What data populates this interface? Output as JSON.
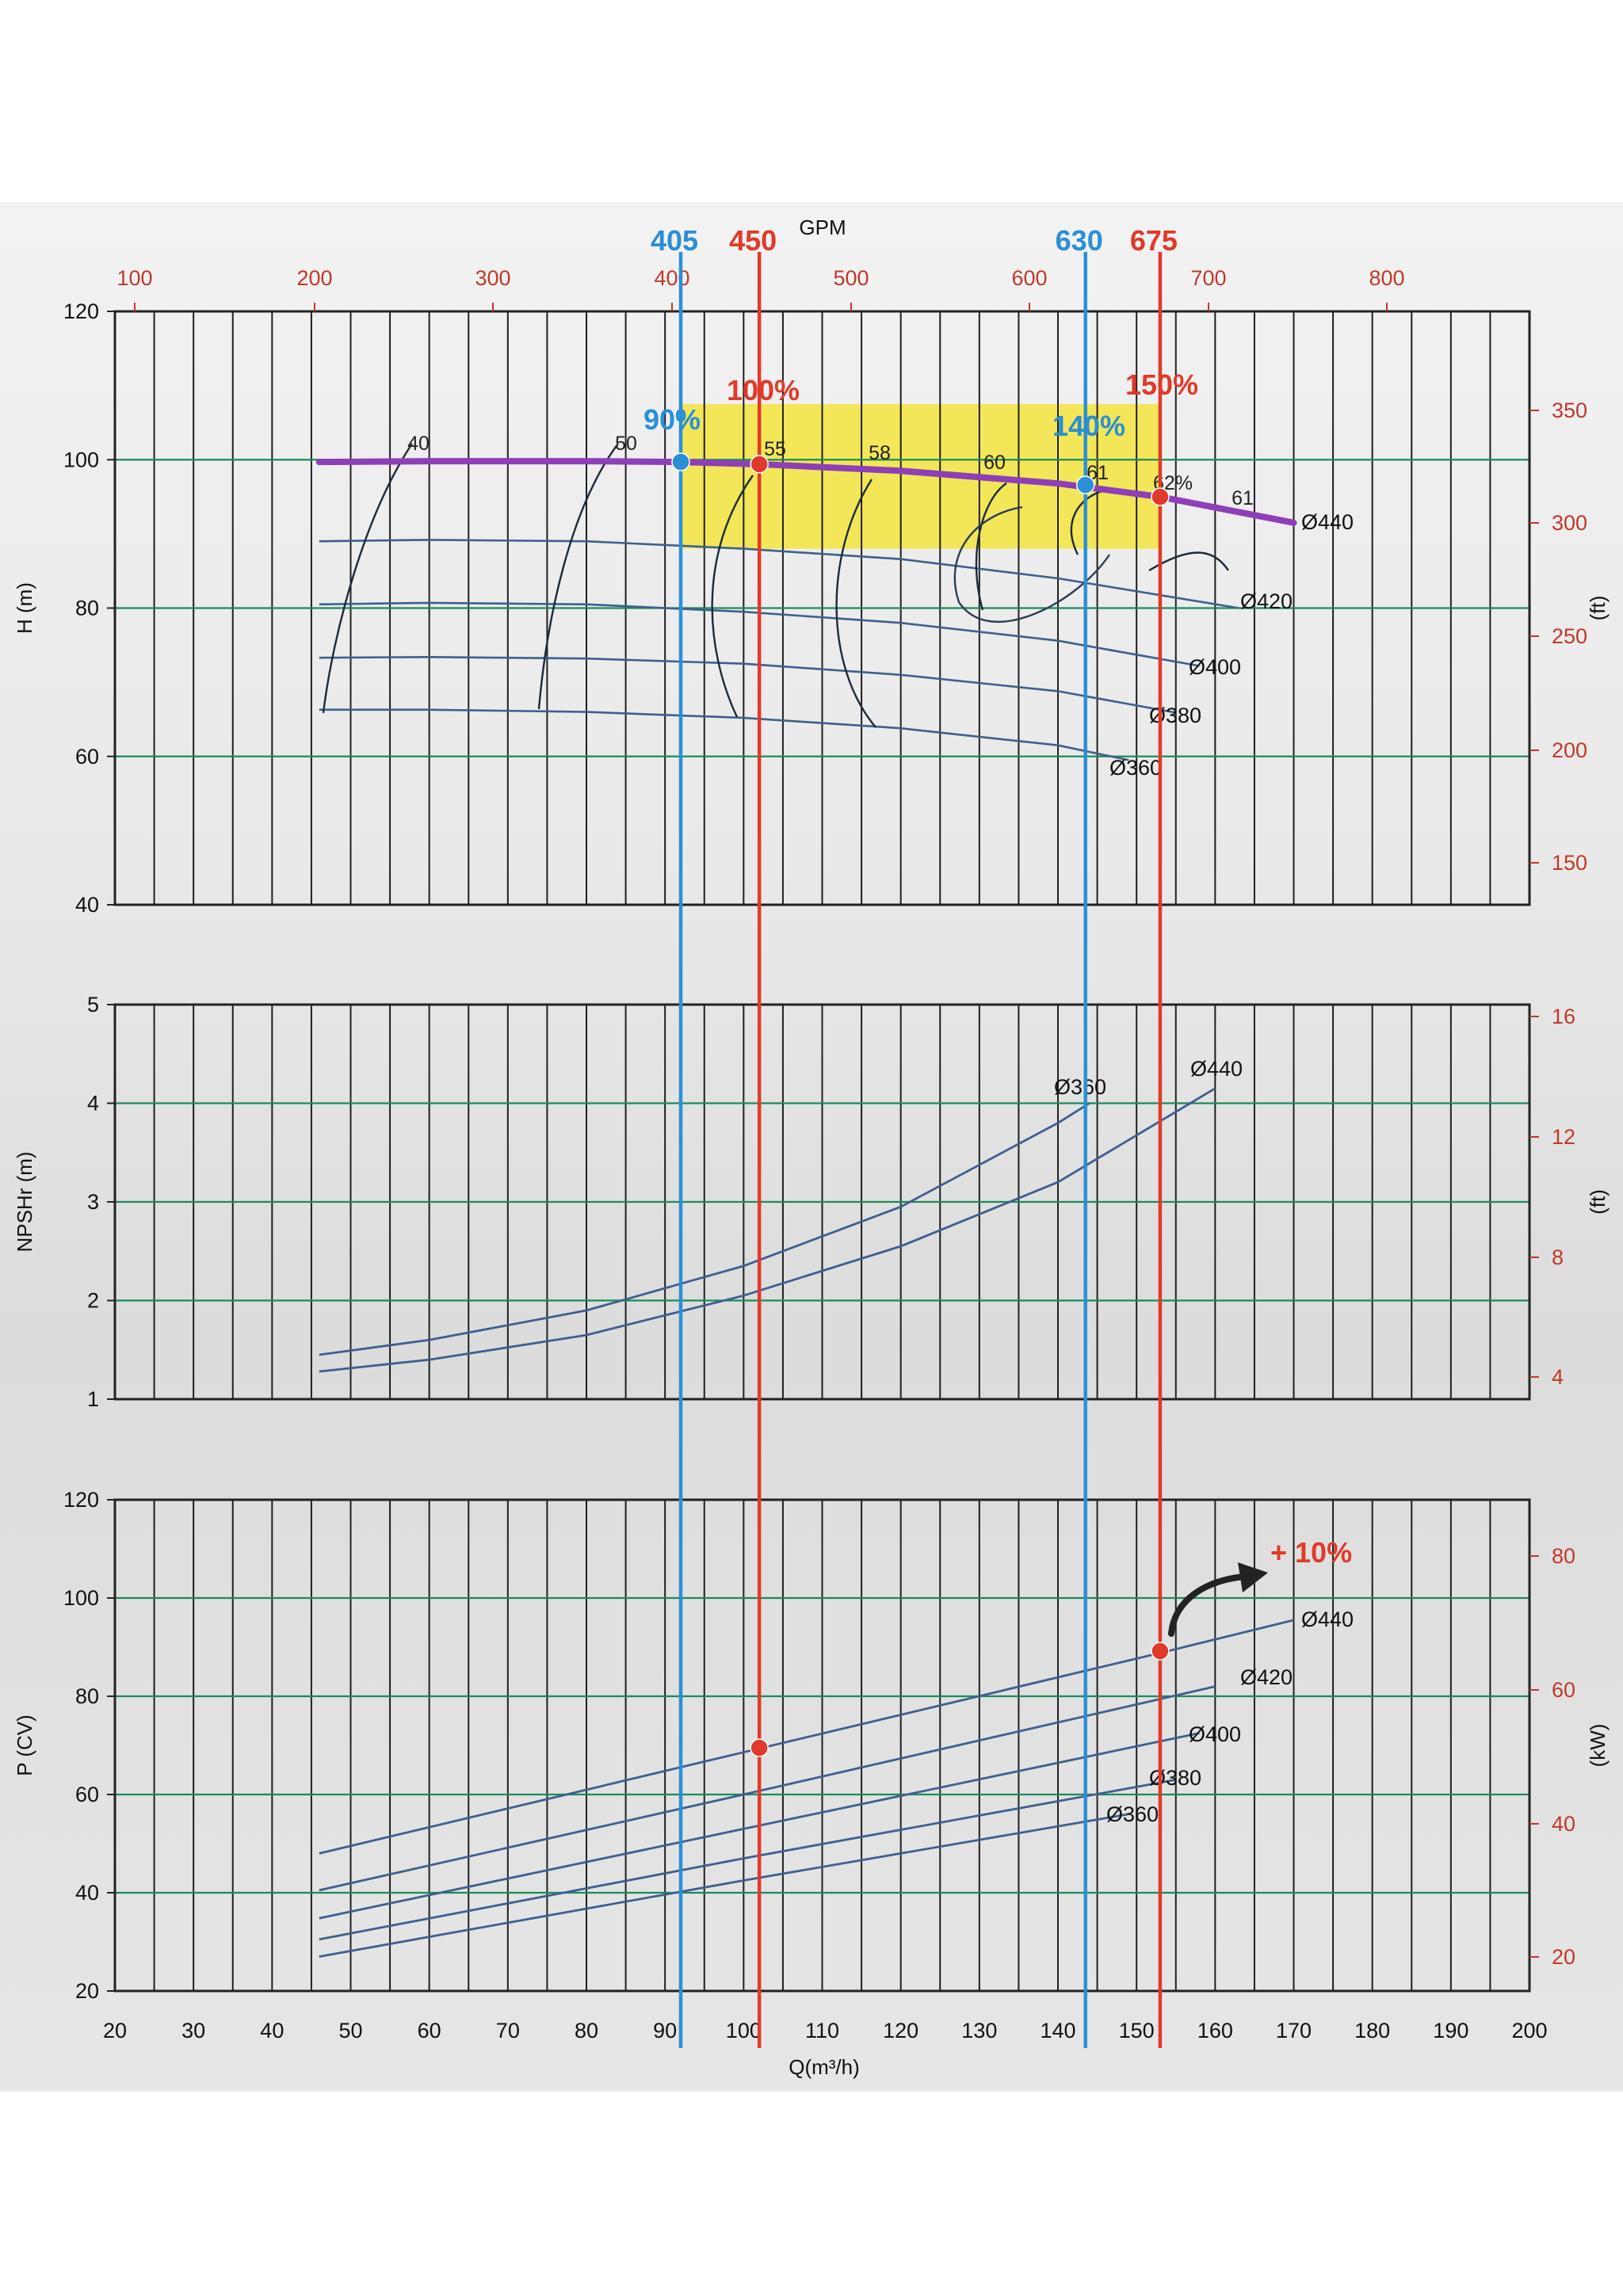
{
  "chart_data": {
    "type": "line",
    "x_axis": {
      "label": "Q(m³/h)",
      "min": 20,
      "max": 200,
      "ticks": [
        20,
        30,
        40,
        50,
        60,
        70,
        80,
        90,
        100,
        110,
        120,
        130,
        140,
        150,
        160,
        170,
        180,
        190,
        200
      ]
    },
    "gpm_axis": {
      "label": "GPM",
      "ticks": [
        100,
        200,
        300,
        400,
        500,
        600,
        700,
        800
      ]
    },
    "panels": {
      "head": {
        "ylabel": "H (m)",
        "ylim": [
          40,
          120
        ],
        "yticks": [
          40,
          60,
          80,
          100,
          120
        ],
        "right_label": "(ft)",
        "right_ticks": [
          150,
          200,
          250,
          300,
          350
        ],
        "operating_curve": {
          "name": "Ø440",
          "x": [
            46,
            60,
            80,
            92,
            102,
            120,
            140,
            153,
            170
          ],
          "y": [
            99.7,
            99.8,
            99.8,
            99.7,
            99.4,
            98.5,
            96.8,
            95.0,
            91.5
          ]
        },
        "impeller_curves": [
          {
            "name": "Ø420",
            "x": [
              46,
              60,
              80,
              100,
              120,
              140,
              163
            ],
            "y": [
              89,
              89.2,
              89,
              88,
              86.6,
              84,
              80
            ]
          },
          {
            "name": "Ø400",
            "x": [
              46,
              60,
              80,
              100,
              120,
              140,
              158
            ],
            "y": [
              80.5,
              80.7,
              80.5,
              79.5,
              78,
              75.6,
              72.2
            ]
          },
          {
            "name": "Ø380",
            "x": [
              46,
              60,
              80,
              100,
              120,
              140,
              155
            ],
            "y": [
              73.3,
              73.4,
              73.2,
              72.5,
              71,
              68.8,
              65.9
            ]
          },
          {
            "name": "Ø360",
            "x": [
              46,
              60,
              80,
              100,
              120,
              140,
              149
            ],
            "y": [
              66.3,
              66.3,
              66,
              65.2,
              63.8,
              61.5,
              59.5
            ]
          }
        ],
        "efficiency_labels": [
          "40",
          "50",
          "55",
          "58",
          "60",
          "61",
          "62%",
          "61"
        ],
        "highlight_zone": {
          "x": [
            92,
            153
          ],
          "y": [
            88,
            107.5
          ]
        },
        "points": [
          {
            "label": "90%",
            "x": 92,
            "y": 99.7,
            "color": "#2a8fd6"
          },
          {
            "label": "100%",
            "x": 102,
            "y": 99.4,
            "color": "#e03a2a"
          },
          {
            "label": "140%",
            "x": 143.5,
            "y": 96.6,
            "color": "#2a8fd6"
          },
          {
            "label": "150%",
            "x": 153,
            "y": 95.0,
            "color": "#e03a2a"
          }
        ]
      },
      "npsh": {
        "ylabel": "NPSHr (m)",
        "ylim": [
          1,
          5
        ],
        "yticks": [
          1,
          2,
          3,
          4,
          5
        ],
        "right_label": "(ft)",
        "right_ticks": [
          4,
          8,
          12,
          16
        ],
        "series": [
          {
            "name": "Ø360",
            "x": [
              46,
              60,
              80,
              100,
              120,
              140,
              144
            ],
            "y": [
              1.45,
              1.6,
              1.9,
              2.35,
              2.95,
              3.8,
              4.0
            ]
          },
          {
            "name": "Ø440",
            "x": [
              46,
              60,
              80,
              100,
              120,
              140,
              160
            ],
            "y": [
              1.28,
              1.4,
              1.65,
              2.05,
              2.55,
              3.2,
              4.15
            ]
          }
        ]
      },
      "power": {
        "ylabel": "P (CV)",
        "ylim": [
          20,
          120
        ],
        "yticks": [
          20,
          40,
          60,
          80,
          100,
          120
        ],
        "right_label": "(kW)",
        "right_ticks": [
          20,
          40,
          60,
          80
        ],
        "series": [
          {
            "name": "Ø440",
            "x": [
              46,
              100,
              153,
              170
            ],
            "y": [
              48,
              68.6,
              88.8,
              95.5
            ]
          },
          {
            "name": "Ø420",
            "x": [
              46,
              100,
              160
            ],
            "y": [
              40.5,
              60,
              82
            ]
          },
          {
            "name": "Ø400",
            "x": [
              46,
              100,
              158
            ],
            "y": [
              34.8,
              53,
              72.5
            ]
          },
          {
            "name": "Ø380",
            "x": [
              46,
              100,
              155
            ],
            "y": [
              30.5,
              47,
              63
            ]
          },
          {
            "name": "Ø360",
            "x": [
              46,
              100,
              149
            ],
            "y": [
              27,
              42.5,
              56
            ]
          }
        ],
        "points": [
          {
            "x": 102,
            "y": 69.5,
            "color": "#e03a2a"
          },
          {
            "x": 153,
            "y": 89.2,
            "color": "#e03a2a"
          }
        ],
        "annotation": "+ 10%"
      }
    },
    "markers": [
      {
        "label": "405",
        "x": 92,
        "color": "#2a8fd6"
      },
      {
        "label": "450",
        "x": 102,
        "color": "#e03a2a"
      },
      {
        "label": "630",
        "x": 143.5,
        "color": "#2a8fd6"
      },
      {
        "label": "675",
        "x": 153,
        "color": "#e03a2a"
      }
    ]
  }
}
